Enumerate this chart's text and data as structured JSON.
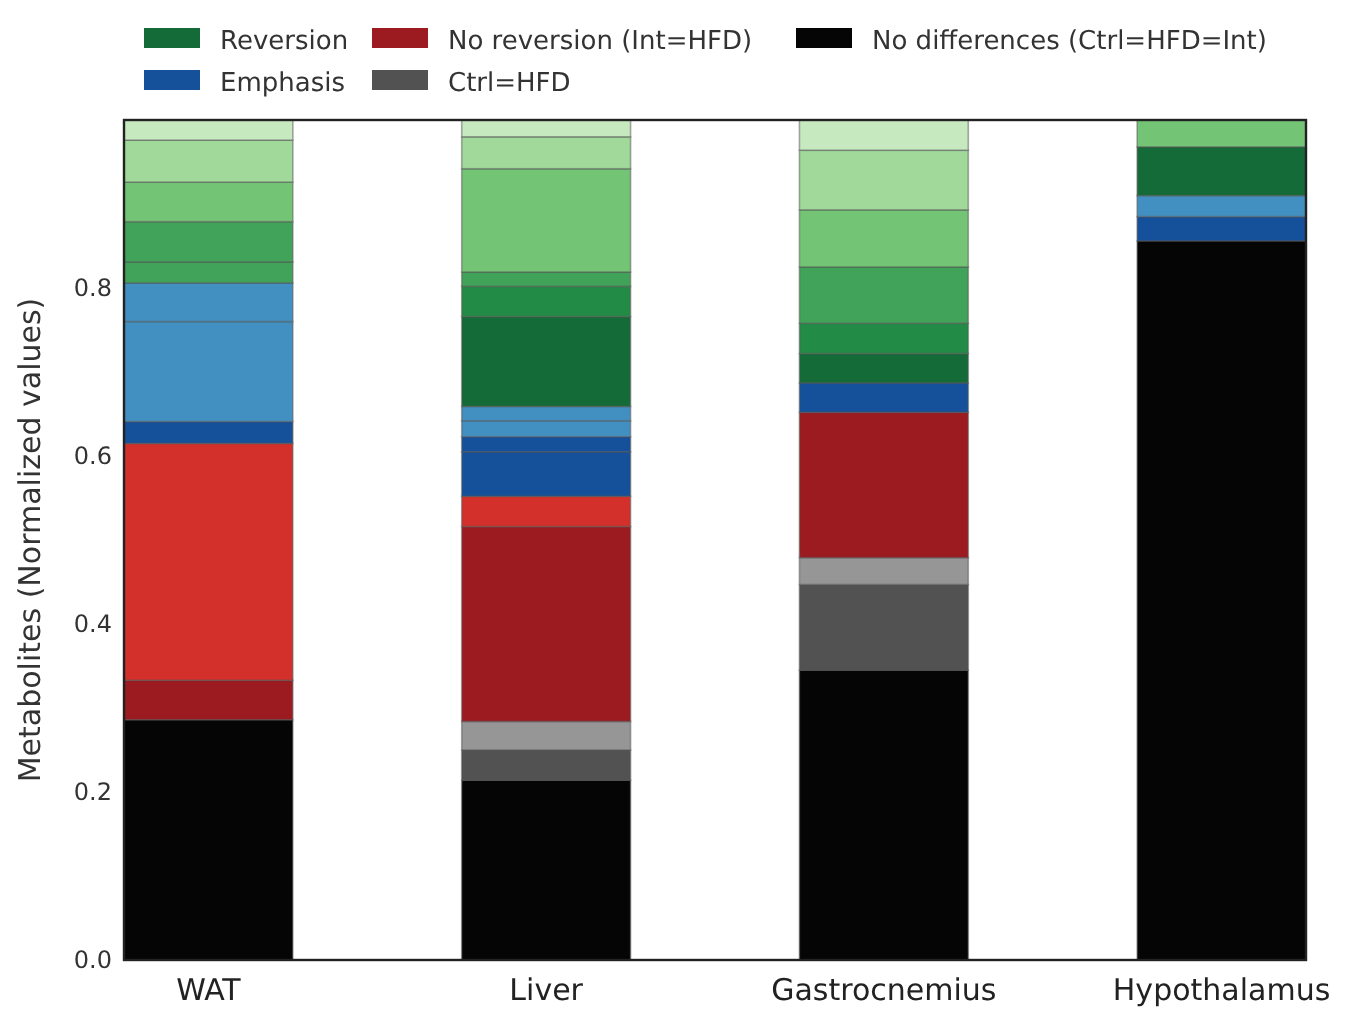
{
  "chart_data": {
    "type": "bar",
    "stacked": true,
    "ylabel": "Metabolites (Normalized values)",
    "categories": [
      "WAT",
      "Liver",
      "Gastrocnemius",
      "Hypothalamus"
    ],
    "ylim": [
      0,
      1.0
    ],
    "yticks": [
      {
        "value": 0,
        "label": "0.0"
      },
      {
        "value": 0.2,
        "label": "0.2"
      },
      {
        "value": 0.4,
        "label": "0.4"
      },
      {
        "value": 0.6,
        "label": "0.6"
      },
      {
        "value": 0.8,
        "label": "0.8"
      }
    ],
    "grid": false,
    "legend": "top",
    "series": [
      {
        "name": "No differences (Ctrl=HFD=Int)",
        "color": "#050505",
        "values": [
          0.286,
          0.214,
          0.345,
          0.856
        ]
      },
      {
        "name": "Ctrl=HFD",
        "color": "#525252",
        "values": [
          null,
          0.036,
          0.102,
          null
        ]
      },
      {
        "color": "#969696",
        "values": [
          null,
          0.034,
          0.032,
          null
        ]
      },
      {
        "name": "No reversion (Int=HFD)",
        "color": "#9b1b20",
        "values": [
          0.047,
          0.232,
          0.173,
          null
        ]
      },
      {
        "color": "#d3302b",
        "values": [
          0.282,
          0.036,
          null,
          null
        ]
      },
      {
        "color": "#15509a",
        "values": [
          0.026,
          0.053,
          0.035,
          0.029
        ]
      },
      {
        "name": "Emphasis",
        "color": "#15509a",
        "values": [
          null,
          0.018,
          null,
          null
        ]
      },
      {
        "color": "#4290c2",
        "values": [
          0.119,
          0.019,
          null,
          0.025
        ]
      },
      {
        "color": "#4290c2",
        "values": [
          0.046,
          0.017,
          null,
          null
        ]
      },
      {
        "name": "Reversion",
        "color": "#156b38",
        "values": [
          null,
          0.107,
          0.035,
          0.058
        ]
      },
      {
        "color": "#228b45",
        "values": [
          null,
          0.036,
          0.036,
          null
        ]
      },
      {
        "color": "#41a35a",
        "values": [
          0.025,
          0.017,
          0.067,
          null
        ]
      },
      {
        "color": "#41a35a",
        "values": [
          0.048,
          null,
          null,
          null
        ]
      },
      {
        "color": "#74c476",
        "values": [
          0.047,
          0.123,
          0.068,
          0.032
        ]
      },
      {
        "color": "#a1d99b",
        "values": [
          0.05,
          0.038,
          0.071,
          null
        ]
      },
      {
        "color": "#c7e9c0",
        "values": [
          0.024,
          0.02,
          0.036,
          null
        ]
      }
    ]
  }
}
